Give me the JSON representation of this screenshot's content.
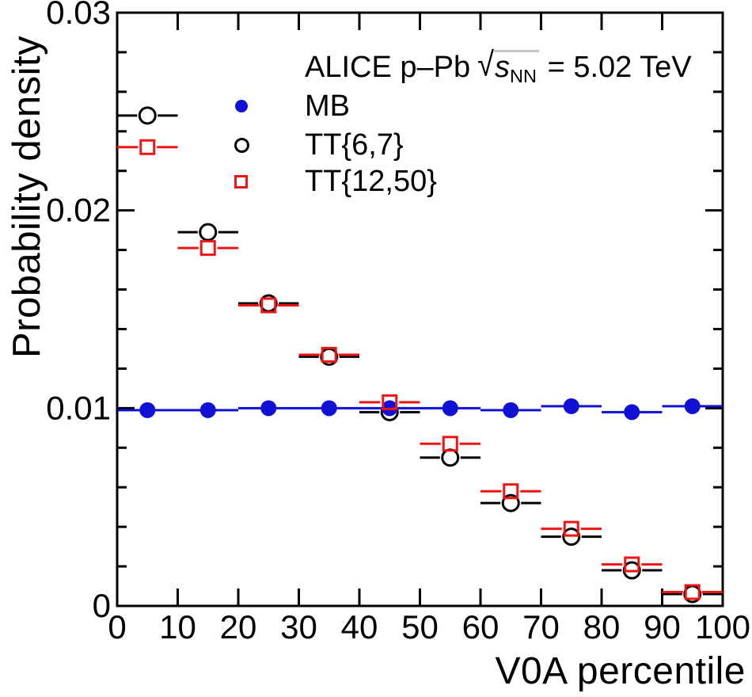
{
  "legend": {
    "title": {
      "prefix": "ALICE p–Pb",
      "sqrt": "√",
      "s": "s",
      "sub": "NN",
      "suffix": " = 5.02 TeV"
    },
    "items": [
      {
        "label": "MB",
        "marker": "filled-circle",
        "color": "#1111d6"
      },
      {
        "label": "TT{6,7}",
        "marker": "open-circle",
        "color": "#000000"
      },
      {
        "label": "TT{12,50}",
        "marker": "open-square",
        "color": "#f01414"
      }
    ]
  },
  "chart_data": {
    "type": "scatter",
    "title": "ALICE p–Pb sqrt(s_NN) = 5.02 TeV",
    "xlabel": "V0A percentile",
    "ylabel": "Probability density",
    "xlim": [
      0,
      100
    ],
    "ylim": [
      0,
      0.03
    ],
    "grid": false,
    "legend_position": "top-inside",
    "x": [
      5,
      15,
      25,
      35,
      45,
      55,
      65,
      75,
      85,
      95
    ],
    "x_bin_half_width": 5,
    "x_tick_values": [
      0,
      10,
      20,
      30,
      40,
      50,
      60,
      70,
      80,
      90,
      100
    ],
    "x_tick_labels": [
      "0",
      "10",
      "20",
      "30",
      "40",
      "50",
      "60",
      "70",
      "80",
      "90",
      "100"
    ],
    "y_major_ticks": [
      {
        "value": 0,
        "label": "0"
      },
      {
        "value": 0.01,
        "label": "0.01"
      },
      {
        "value": 0.02,
        "label": "0.02"
      },
      {
        "value": 0.03,
        "label": "0.03"
      }
    ],
    "y_minor_step": 0.002,
    "series": [
      {
        "name": "MB",
        "marker": "filled-circle",
        "color": "#1111d6",
        "z": 2,
        "values": [
          0.0099,
          0.0099,
          0.01,
          0.01,
          0.01,
          0.01,
          0.0099,
          0.0101,
          0.0098,
          0.0101
        ]
      },
      {
        "name": "TT{6,7}",
        "marker": "open-circle",
        "color": "#000000",
        "z": 1,
        "values": [
          0.0248,
          0.0189,
          0.0153,
          0.0126,
          0.0098,
          0.0075,
          0.0052,
          0.0035,
          0.0018,
          0.0006
        ]
      },
      {
        "name": "TT{12,50}",
        "marker": "open-square",
        "color": "#f01414",
        "z": 3,
        "values": [
          0.0232,
          0.0181,
          0.0152,
          0.0127,
          0.0103,
          0.0082,
          0.0058,
          0.0039,
          0.0021,
          0.0007
        ]
      }
    ]
  }
}
